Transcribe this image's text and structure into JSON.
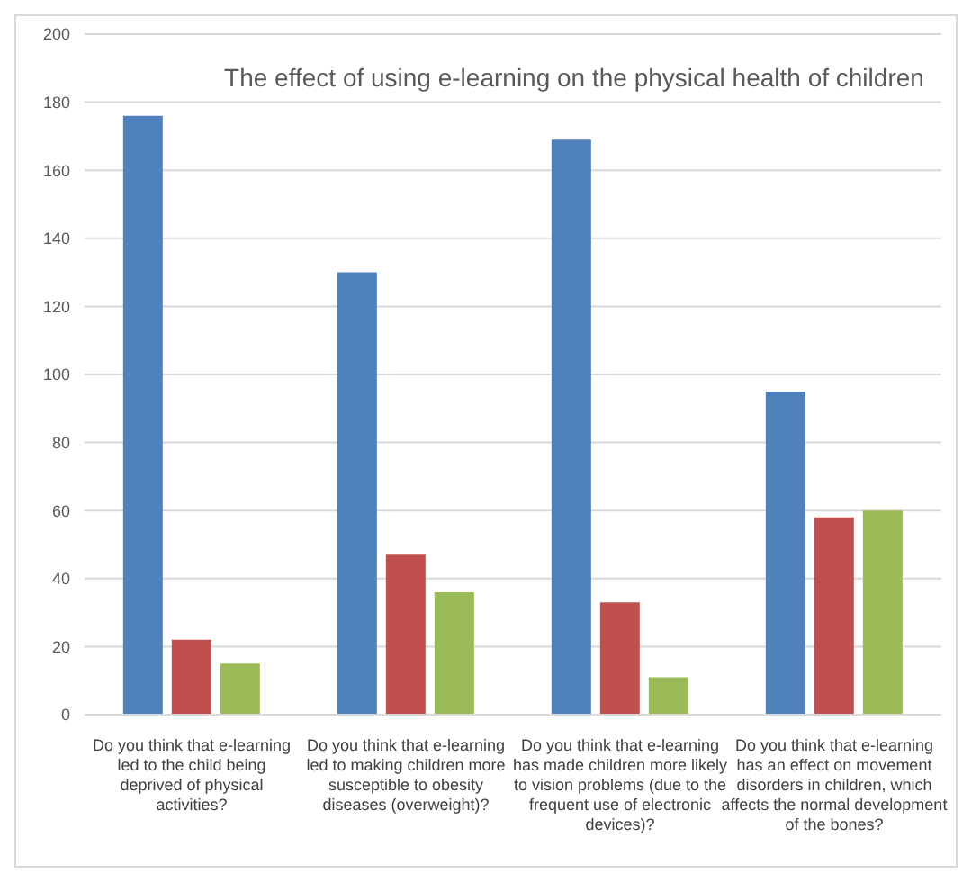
{
  "chart_data": {
    "type": "bar",
    "title": "The effect of using e-learning on the physical health of children",
    "categories": [
      "Do you think that e-learning led to the child being deprived of physical activities?",
      "Do you think that e-learning led to making children more susceptible to obesity diseases (overweight)?",
      "Do you think that e-learning has made children more likely to vision problems (due to the frequent use of electronic devices)?",
      "Do you think that e-learning has an effect on movement disorders in children, which affects the normal development of the bones?"
    ],
    "series": [
      {
        "color": "#4f81bd",
        "values": [
          176,
          130,
          169,
          95
        ]
      },
      {
        "color": "#c0504d",
        "values": [
          22,
          47,
          33,
          58
        ]
      },
      {
        "color": "#9bbb59",
        "values": [
          15,
          36,
          11,
          60
        ]
      }
    ],
    "ylim": [
      0,
      200
    ],
    "yticks": [
      0,
      20,
      40,
      60,
      80,
      100,
      120,
      140,
      160,
      180,
      200
    ],
    "grid": "y",
    "legend": false
  }
}
